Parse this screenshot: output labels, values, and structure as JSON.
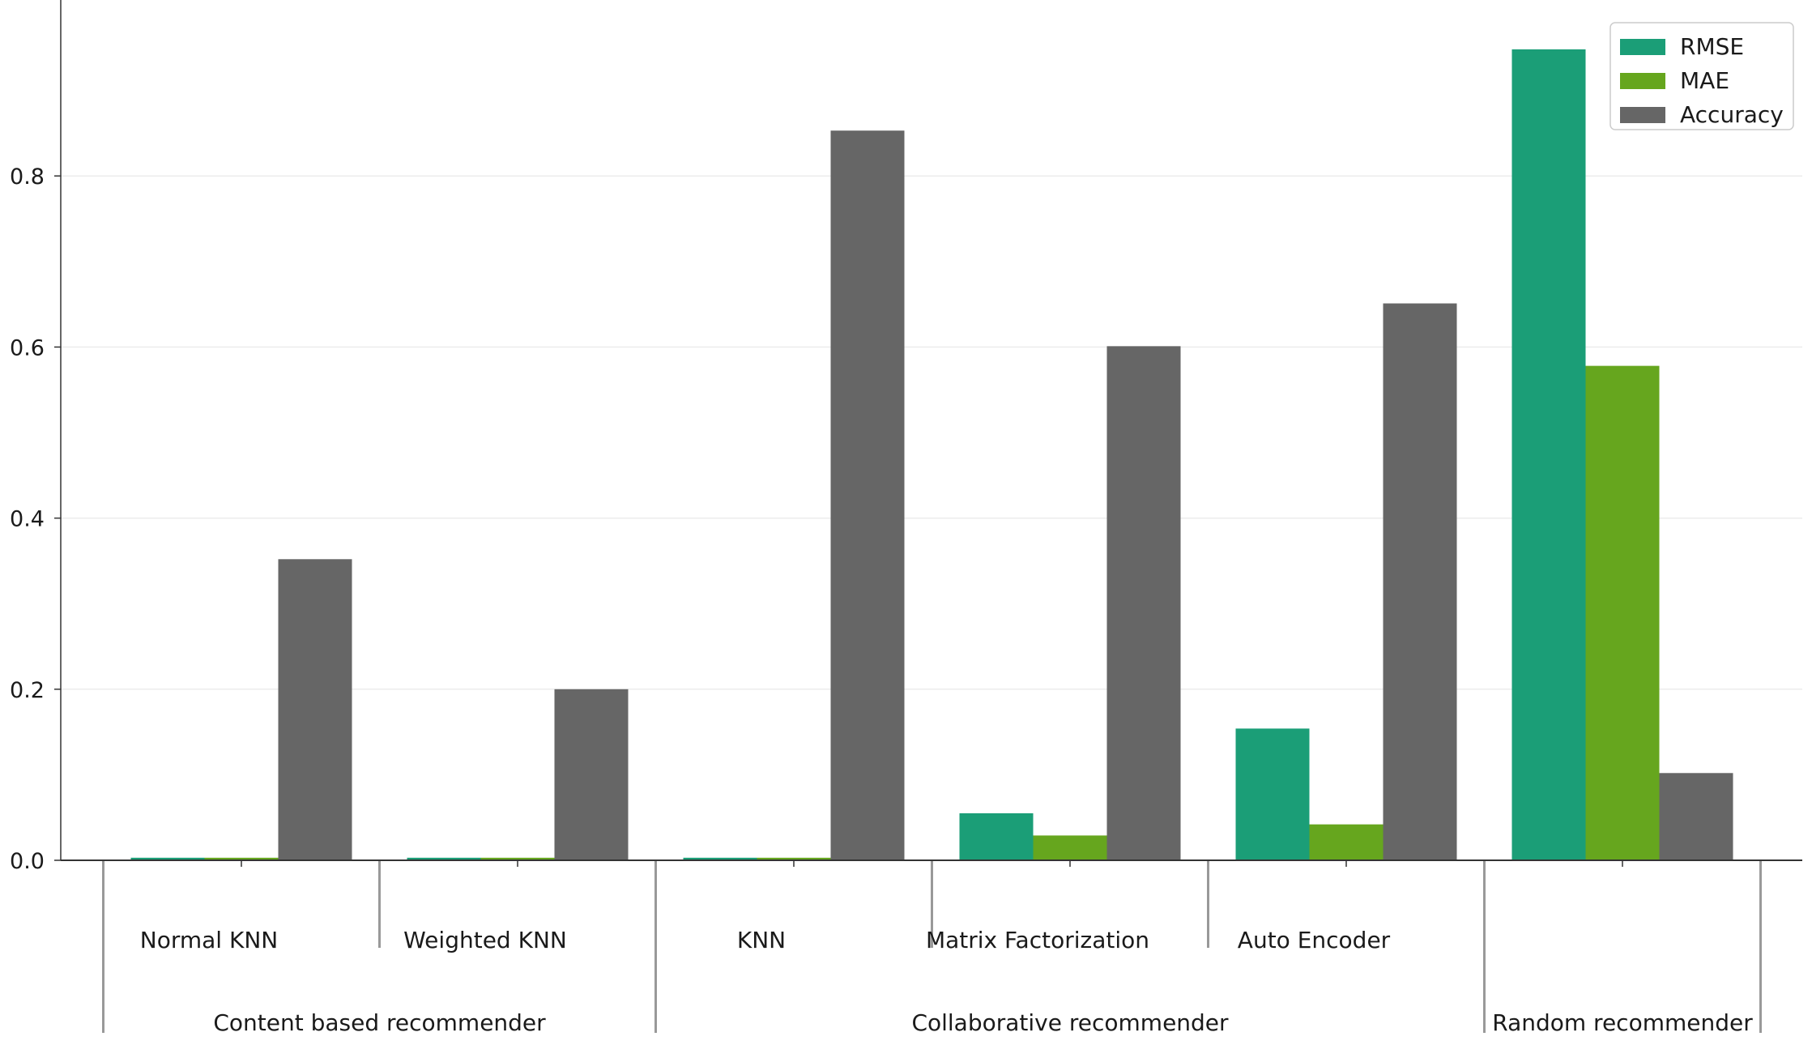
{
  "chart_data": {
    "type": "bar",
    "title": "",
    "xlabel": "",
    "ylabel": "",
    "ylim": [
      0,
      0.95
    ],
    "yticks": [
      0.0,
      0.2,
      0.4,
      0.6,
      0.8
    ],
    "ytick_labels": [
      "0.0",
      "0.2",
      "0.4",
      "0.6",
      "0.8"
    ],
    "grid": "horizontal, light",
    "legend_position": "top-right",
    "categories": [
      "Normal KNN",
      "Weighted KNN",
      "KNN",
      "Matrix Factorization",
      "Auto Encoder",
      ""
    ],
    "groups": [
      {
        "label": "Content based recommender",
        "span": [
          0,
          1
        ]
      },
      {
        "label": "Collaborative recommender",
        "span": [
          2,
          4
        ]
      },
      {
        "label": "Random recommender",
        "span": [
          5,
          5
        ]
      }
    ],
    "series": [
      {
        "name": "RMSE",
        "color": "#1b9e77",
        "values": [
          0.003,
          0.003,
          0.003,
          0.055,
          0.154,
          0.948
        ]
      },
      {
        "name": "MAE",
        "color": "#66a61e",
        "values": [
          0.003,
          0.003,
          0.003,
          0.029,
          0.042,
          0.578
        ]
      },
      {
        "name": "Accuracy",
        "color": "#666666",
        "values": [
          0.352,
          0.2,
          0.853,
          0.601,
          0.651,
          0.102
        ]
      }
    ]
  }
}
